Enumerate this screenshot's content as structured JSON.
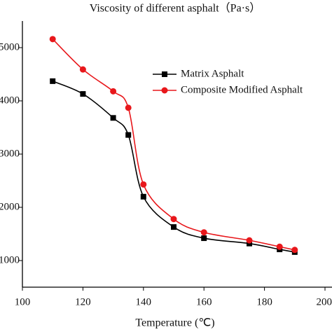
{
  "chart_data": {
    "type": "line",
    "title": "Viscosity of different asphalt（Pa·s）",
    "xlabel": "Temperature (℃)",
    "x": [
      110,
      120,
      130,
      135,
      140,
      150,
      160,
      175,
      185,
      190
    ],
    "series": [
      {
        "name": "Matrix Asphalt",
        "color": "#000000",
        "marker": "square",
        "values": [
          4370,
          4130,
          3680,
          3360,
          2200,
          1630,
          1420,
          1320,
          1210,
          1160
        ]
      },
      {
        "name": "Composite Modified Asphalt",
        "color": "#e8171b",
        "marker": "circle",
        "values": [
          5160,
          4590,
          4180,
          3870,
          2430,
          1780,
          1530,
          1380,
          1260,
          1200
        ]
      }
    ],
    "xlim": [
      100,
      200
    ],
    "xticks": [
      100,
      120,
      140,
      160,
      180,
      200
    ],
    "ylim": [
      500,
      5500
    ],
    "yticks": [
      1000,
      2000,
      3000,
      4000,
      5000
    ],
    "grid": false,
    "legend": "upper right"
  }
}
